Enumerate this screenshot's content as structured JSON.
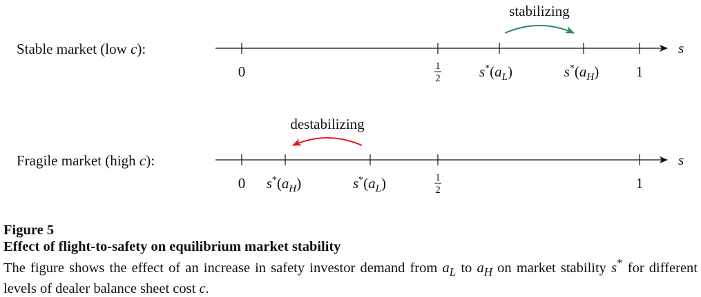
{
  "diagram": {
    "rows": [
      {
        "label_text": "Stable market (low ",
        "label_var": "c",
        "label_end": "):",
        "axis_var": "s",
        "ticks": [
          {
            "value": 0,
            "label": "0"
          },
          {
            "value": 0.5,
            "label": "1/2"
          },
          {
            "value": 0.62,
            "label": "s*(aL)"
          },
          {
            "value": 0.83,
            "label": "s*(aH)"
          },
          {
            "value": 1,
            "label": "1"
          }
        ],
        "arrow": {
          "text": "stabilizing",
          "from": "s*(aL)",
          "to": "s*(aH)",
          "color": "#2e8b57"
        }
      },
      {
        "label_text": "Fragile market (high ",
        "label_var": "c",
        "label_end": "):",
        "axis_var": "s",
        "ticks": [
          {
            "value": 0,
            "label": "0"
          },
          {
            "value": 0.11,
            "label": "s*(aH)"
          },
          {
            "value": 0.32,
            "label": "s*(aL)"
          },
          {
            "value": 0.5,
            "label": "1/2"
          },
          {
            "value": 1,
            "label": "1"
          }
        ],
        "arrow": {
          "text": "destabilizing",
          "from": "s*(aL)",
          "to": "s*(aH)",
          "color": "#e8161b"
        }
      }
    ]
  },
  "caption": {
    "figure_label": "Figure 5",
    "title": "Effect of flight-to-safety on equilibrium market stability",
    "desc_1": "The figure shows the effect of an increase in safety investor demand from ",
    "a_var": "a",
    "sub_L": "L",
    "desc_2": " to ",
    "sub_H": "H",
    "desc_3": " on market stability ",
    "s_var": "s",
    "star": "*",
    "desc_4": " for different levels of dealer balance sheet cost ",
    "c_var": "c",
    "desc_5": "."
  }
}
